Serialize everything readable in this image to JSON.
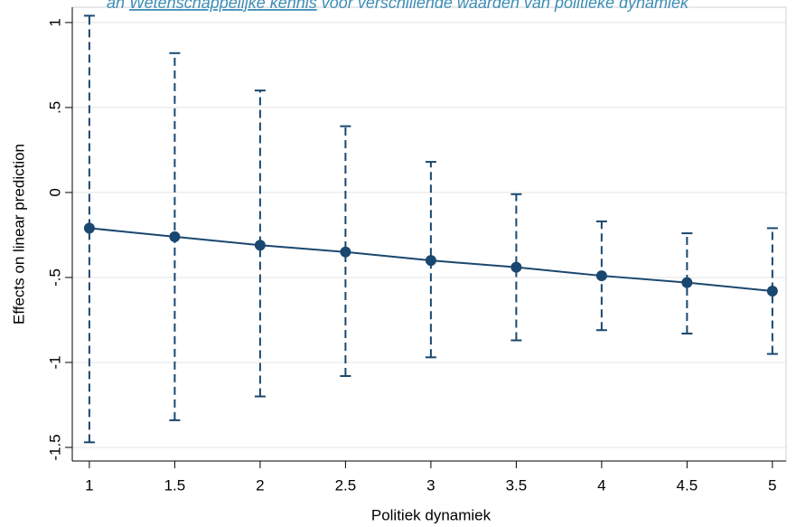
{
  "chart_data": {
    "type": "errorbar-line",
    "title_parts": [
      "an ",
      "Wetenschappelijke kennis",
      " voor verschillende waarden van politieke dynamiek"
    ],
    "x_label": "Politiek dynamiek",
    "y_label": "Effects on linear prediction",
    "x": [
      1,
      1.5,
      2,
      2.5,
      3,
      3.5,
      4,
      4.5,
      5
    ],
    "series": [
      {
        "color": "#1a476f",
        "values": [
          -0.21,
          -0.26,
          -0.31,
          -0.35,
          -0.4,
          -0.44,
          -0.49,
          -0.53,
          -0.58
        ],
        "lower": [
          -1.47,
          -1.34,
          -1.2,
          -1.08,
          -0.97,
          -0.87,
          -0.81,
          -0.83,
          -0.95
        ],
        "upper": [
          1.04,
          0.82,
          0.6,
          0.39,
          0.18,
          -0.01,
          -0.17,
          -0.24,
          -0.21
        ]
      }
    ],
    "xlim": [
      0.9,
      5.08
    ],
    "ylim": [
      -1.58,
      1.09
    ],
    "xticks": [
      1,
      {
        "value": 1.5,
        "label": "1.5"
      },
      2,
      {
        "value": 2.5,
        "label": "2.5"
      },
      3,
      {
        "value": 3.5,
        "label": "3.5"
      },
      4,
      {
        "value": 4.5,
        "label": "4.5"
      },
      5
    ],
    "yticks": [
      1,
      {
        "value": 0.5,
        "label": ".5"
      },
      0,
      {
        "value": -0.5,
        "label": "-.5"
      },
      -1,
      {
        "value": -1.5,
        "label": "-1.5"
      }
    ],
    "grid": true
  }
}
